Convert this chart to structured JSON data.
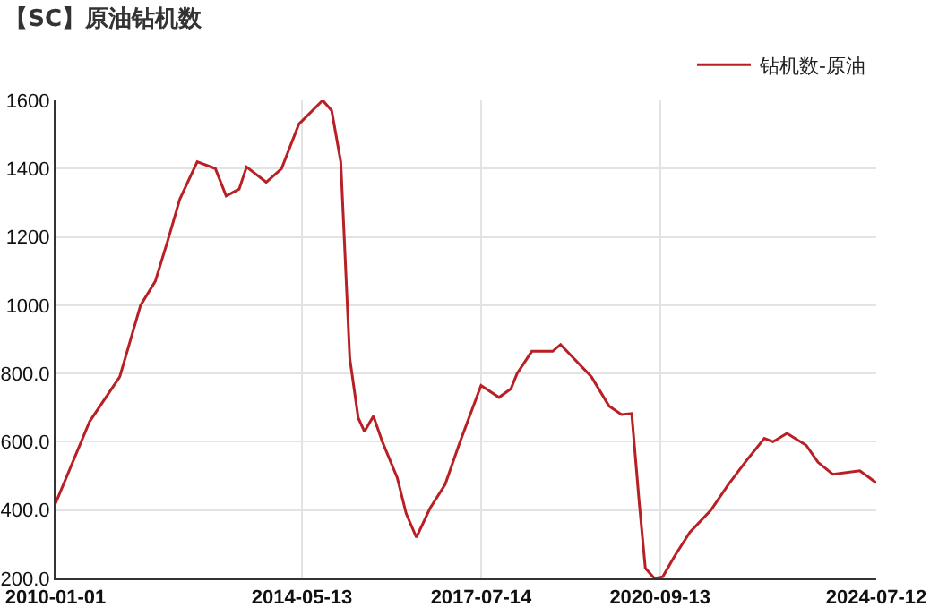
{
  "chart_data": {
    "type": "line",
    "title": "【SC】原油钻机数",
    "x": [
      "2010-01-01",
      "2010-08-10",
      "2011-02-20",
      "2011-07-05",
      "2011-10-08",
      "2011-12-28",
      "2012-03-14",
      "2012-07-05",
      "2012-10-30",
      "2013-01-08",
      "2013-04-02",
      "2013-05-20",
      "2013-09-24",
      "2014-01-01",
      "2014-04-23",
      "2014-09-24",
      "2014-11-21",
      "2015-01-19",
      "2015-03-18",
      "2015-05-12",
      "2015-06-21",
      "2015-08-18",
      "2015-10-15",
      "2016-01-19",
      "2016-03-17",
      "2016-05-22",
      "2016-08-18",
      "2016-11-24",
      "2017-02-28",
      "2017-07-14",
      "2017-11-07",
      "2018-01-23",
      "2018-03-04",
      "2018-06-07",
      "2018-10-20",
      "2018-12-10",
      "2019-03-04",
      "2019-06-28",
      "2019-10-19",
      "2020-01-08",
      "2020-03-14",
      "2020-05-01",
      "2020-06-10",
      "2020-08-08",
      "2020-10-01",
      "2020-12-16",
      "2021-03-25",
      "2021-08-08",
      "2021-11-29",
      "2022-03-26",
      "2022-07-20",
      "2022-09-13",
      "2022-12-13",
      "2023-04-16",
      "2023-07-02",
      "2023-10-05",
      "2024-03-28",
      "2024-07-12"
    ],
    "series": [
      {
        "name": "钻机数-原油",
        "color": "#b82025",
        "values": [
          420,
          660,
          790,
          1000,
          1070,
          1190,
          1310,
          1420,
          1400,
          1320,
          1340,
          1405,
          1360,
          1400,
          1530,
          1600,
          1570,
          1420,
          845,
          670,
          630,
          675,
          600,
          495,
          390,
          320,
          405,
          475,
          600,
          765,
          730,
          755,
          800,
          865,
          865,
          885,
          845,
          790,
          705,
          680,
          683,
          425,
          230,
          200,
          205,
          265,
          335,
          400,
          475,
          545,
          610,
          600,
          625,
          590,
          540,
          505,
          515,
          480
        ]
      }
    ],
    "xlim": [
      "2010-01-01",
      "2024-07-12"
    ],
    "xticks": [
      "2010-01-01",
      "2014-05-13",
      "2017-07-14",
      "2020-09-13",
      "2024-07-12"
    ],
    "ylim": [
      200,
      1600
    ],
    "yticks": [
      {
        "value": 200,
        "label": "200.0"
      },
      {
        "value": 400,
        "label": "400.0"
      },
      {
        "value": 600,
        "label": "600.0"
      },
      {
        "value": 800,
        "label": "800.0"
      },
      1000,
      1200,
      1400,
      1600
    ],
    "grid": true,
    "legend": "top right",
    "marker": "none",
    "line_style": "solid"
  }
}
